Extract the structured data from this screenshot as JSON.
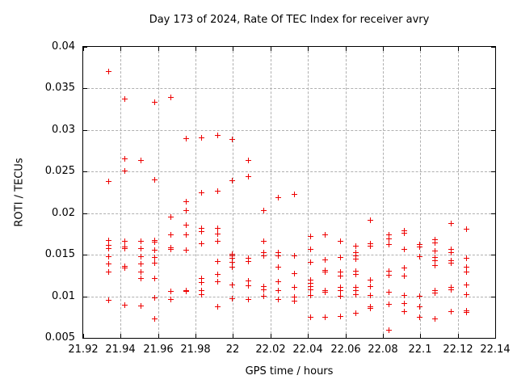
{
  "chart_data": {
    "type": "scatter",
    "title": "Day 173 of 2024, Rate Of TEC Index for receiver avry",
    "xlabel": "GPS time / hours",
    "ylabel": "ROTI / TECUs",
    "xlim": [
      21.92,
      22.14
    ],
    "ylim": [
      0.005,
      0.04
    ],
    "xticks": [
      21.92,
      21.94,
      21.96,
      21.98,
      22,
      22.02,
      22.04,
      22.06,
      22.08,
      22.1,
      22.12,
      22.14
    ],
    "xtick_labels": [
      "21.92",
      "21.94",
      "21.96",
      "21.98",
      "22",
      "22.02",
      "22.04",
      "22.06",
      "22.08",
      "22.1",
      "22.12",
      "22.14"
    ],
    "yticks": [
      0.005,
      0.01,
      0.015,
      0.02,
      0.025,
      0.03,
      0.035,
      0.04
    ],
    "ytick_labels": [
      "0.005",
      "0.01",
      "0.015",
      "0.02",
      "0.025",
      "0.03",
      "0.035",
      "0.04"
    ],
    "grid": true,
    "legend": "none",
    "marker_shape": "plus",
    "marker_color": "#ee0000",
    "grid_color": "#b0b0b0",
    "frame_color": "#000000",
    "background_color": "#ffffff",
    "series": [
      {
        "name": "ROTI",
        "points": [
          [
            21.934,
            0.037
          ],
          [
            21.934,
            0.0238
          ],
          [
            21.934,
            0.0167
          ],
          [
            21.934,
            0.0161
          ],
          [
            21.934,
            0.0157
          ],
          [
            21.934,
            0.0147
          ],
          [
            21.934,
            0.0138
          ],
          [
            21.934,
            0.0129
          ],
          [
            21.934,
            0.0095
          ],
          [
            21.9425,
            0.0337
          ],
          [
            21.9425,
            0.0265
          ],
          [
            21.9425,
            0.025
          ],
          [
            21.9425,
            0.0166
          ],
          [
            21.9425,
            0.0159
          ],
          [
            21.9425,
            0.0157
          ],
          [
            21.9425,
            0.0136
          ],
          [
            21.9425,
            0.0134
          ],
          [
            21.9425,
            0.0089
          ],
          [
            21.951,
            0.0263
          ],
          [
            21.951,
            0.0166
          ],
          [
            21.951,
            0.0157
          ],
          [
            21.951,
            0.0147
          ],
          [
            21.951,
            0.0138
          ],
          [
            21.951,
            0.0129
          ],
          [
            21.951,
            0.0121
          ],
          [
            21.951,
            0.0088
          ],
          [
            21.9585,
            0.0333
          ],
          [
            21.9585,
            0.024
          ],
          [
            21.9585,
            0.0167
          ],
          [
            21.9585,
            0.0165
          ],
          [
            21.9585,
            0.0155
          ],
          [
            21.9585,
            0.0146
          ],
          [
            21.9585,
            0.0139
          ],
          [
            21.9585,
            0.0121
          ],
          [
            21.9585,
            0.0098
          ],
          [
            21.9585,
            0.0072
          ],
          [
            21.967,
            0.0339
          ],
          [
            21.967,
            0.0195
          ],
          [
            21.967,
            0.0173
          ],
          [
            21.967,
            0.0158
          ],
          [
            21.967,
            0.0156
          ],
          [
            21.967,
            0.0105
          ],
          [
            21.967,
            0.0096
          ],
          [
            21.975,
            0.0289
          ],
          [
            21.975,
            0.0213
          ],
          [
            21.975,
            0.0203
          ],
          [
            21.975,
            0.0185
          ],
          [
            21.975,
            0.0173
          ],
          [
            21.975,
            0.0155
          ],
          [
            21.975,
            0.0106
          ],
          [
            21.975,
            0.0105
          ],
          [
            21.9835,
            0.029
          ],
          [
            21.9835,
            0.0224
          ],
          [
            21.9835,
            0.0181
          ],
          [
            21.9835,
            0.0177
          ],
          [
            21.9835,
            0.0163
          ],
          [
            21.9835,
            0.0121
          ],
          [
            21.9835,
            0.0116
          ],
          [
            21.9835,
            0.0106
          ],
          [
            21.9835,
            0.0102
          ],
          [
            21.992,
            0.0293
          ],
          [
            21.992,
            0.0226
          ],
          [
            21.992,
            0.0181
          ],
          [
            21.992,
            0.0174
          ],
          [
            21.992,
            0.0166
          ],
          [
            21.992,
            0.0141
          ],
          [
            21.992,
            0.0126
          ],
          [
            21.992,
            0.0117
          ],
          [
            21.992,
            0.0087
          ],
          [
            22.0,
            0.0288
          ],
          [
            22.0,
            0.0239
          ],
          [
            22.0,
            0.015
          ],
          [
            22.0,
            0.0148
          ],
          [
            22.0,
            0.0145
          ],
          [
            22.0,
            0.014
          ],
          [
            22.0,
            0.0135
          ],
          [
            22.0,
            0.0113
          ],
          [
            22.0,
            0.0097
          ],
          [
            22.0085,
            0.0263
          ],
          [
            22.0085,
            0.0243
          ],
          [
            22.0085,
            0.0145
          ],
          [
            22.0085,
            0.0141
          ],
          [
            22.0085,
            0.0118
          ],
          [
            22.0085,
            0.0112
          ],
          [
            22.0085,
            0.0096
          ],
          [
            22.0165,
            0.0203
          ],
          [
            22.0165,
            0.0166
          ],
          [
            22.0165,
            0.0152
          ],
          [
            22.0165,
            0.0148
          ],
          [
            22.0165,
            0.0111
          ],
          [
            22.0165,
            0.0107
          ],
          [
            22.0165,
            0.01
          ],
          [
            22.0245,
            0.0218
          ],
          [
            22.0245,
            0.0152
          ],
          [
            22.0245,
            0.0148
          ],
          [
            22.0245,
            0.0135
          ],
          [
            22.0245,
            0.0117
          ],
          [
            22.0245,
            0.0106
          ],
          [
            22.0245,
            0.0096
          ],
          [
            22.033,
            0.0222
          ],
          [
            22.033,
            0.0148
          ],
          [
            22.033,
            0.0127
          ],
          [
            22.033,
            0.011
          ],
          [
            22.033,
            0.0099
          ],
          [
            22.033,
            0.0094
          ],
          [
            22.0415,
            0.0172
          ],
          [
            22.0415,
            0.0156
          ],
          [
            22.0415,
            0.014
          ],
          [
            22.0415,
            0.0119
          ],
          [
            22.0415,
            0.0115
          ],
          [
            22.0415,
            0.0111
          ],
          [
            22.0415,
            0.0107
          ],
          [
            22.0415,
            0.0101
          ],
          [
            22.0415,
            0.0074
          ],
          [
            22.0495,
            0.0173
          ],
          [
            22.0495,
            0.0143
          ],
          [
            22.0495,
            0.0131
          ],
          [
            22.0495,
            0.0129
          ],
          [
            22.0495,
            0.0106
          ],
          [
            22.0495,
            0.0104
          ],
          [
            22.0495,
            0.0074
          ],
          [
            22.0575,
            0.0166
          ],
          [
            22.0575,
            0.0146
          ],
          [
            22.0575,
            0.0129
          ],
          [
            22.0575,
            0.0124
          ],
          [
            22.0575,
            0.011
          ],
          [
            22.0575,
            0.0106
          ],
          [
            22.0575,
            0.01
          ],
          [
            22.0575,
            0.0075
          ],
          [
            22.066,
            0.016
          ],
          [
            22.066,
            0.0152
          ],
          [
            22.066,
            0.0148
          ],
          [
            22.066,
            0.0144
          ],
          [
            22.066,
            0.013
          ],
          [
            22.066,
            0.0126
          ],
          [
            22.066,
            0.011
          ],
          [
            22.066,
            0.0106
          ],
          [
            22.066,
            0.0102
          ],
          [
            22.066,
            0.0079
          ],
          [
            22.0735,
            0.0191
          ],
          [
            22.0735,
            0.0163
          ],
          [
            22.0735,
            0.016
          ],
          [
            22.0735,
            0.0119
          ],
          [
            22.0735,
            0.0111
          ],
          [
            22.0735,
            0.0101
          ],
          [
            22.0735,
            0.0087
          ],
          [
            22.0735,
            0.0085
          ],
          [
            22.0835,
            0.0173
          ],
          [
            22.0835,
            0.0169
          ],
          [
            22.0835,
            0.0162
          ],
          [
            22.0835,
            0.013
          ],
          [
            22.0835,
            0.0125
          ],
          [
            22.0835,
            0.0104
          ],
          [
            22.0835,
            0.009
          ],
          [
            22.0835,
            0.0059
          ],
          [
            22.0915,
            0.0178
          ],
          [
            22.0915,
            0.0175
          ],
          [
            22.0915,
            0.0156
          ],
          [
            22.0915,
            0.0134
          ],
          [
            22.0915,
            0.0124
          ],
          [
            22.0915,
            0.0101
          ],
          [
            22.0915,
            0.0091
          ],
          [
            22.0915,
            0.0081
          ],
          [
            22.1,
            0.0162
          ],
          [
            22.1,
            0.0159
          ],
          [
            22.1,
            0.0147
          ],
          [
            22.1,
            0.01
          ],
          [
            22.1,
            0.0087
          ],
          [
            22.1,
            0.0074
          ],
          [
            22.108,
            0.0168
          ],
          [
            22.108,
            0.0164
          ],
          [
            22.108,
            0.0154
          ],
          [
            22.108,
            0.0146
          ],
          [
            22.108,
            0.0142
          ],
          [
            22.108,
            0.0137
          ],
          [
            22.108,
            0.0106
          ],
          [
            22.108,
            0.0103
          ],
          [
            22.108,
            0.0072
          ],
          [
            22.1165,
            0.0187
          ],
          [
            22.1165,
            0.0156
          ],
          [
            22.1165,
            0.0152
          ],
          [
            22.1165,
            0.0142
          ],
          [
            22.1165,
            0.0139
          ],
          [
            22.1165,
            0.011
          ],
          [
            22.1165,
            0.0107
          ],
          [
            22.1165,
            0.0081
          ],
          [
            22.125,
            0.018
          ],
          [
            22.125,
            0.0145
          ],
          [
            22.125,
            0.0135
          ],
          [
            22.125,
            0.0129
          ],
          [
            22.125,
            0.0113
          ],
          [
            22.125,
            0.0102
          ],
          [
            22.125,
            0.0082
          ],
          [
            22.125,
            0.008
          ]
        ]
      }
    ]
  }
}
